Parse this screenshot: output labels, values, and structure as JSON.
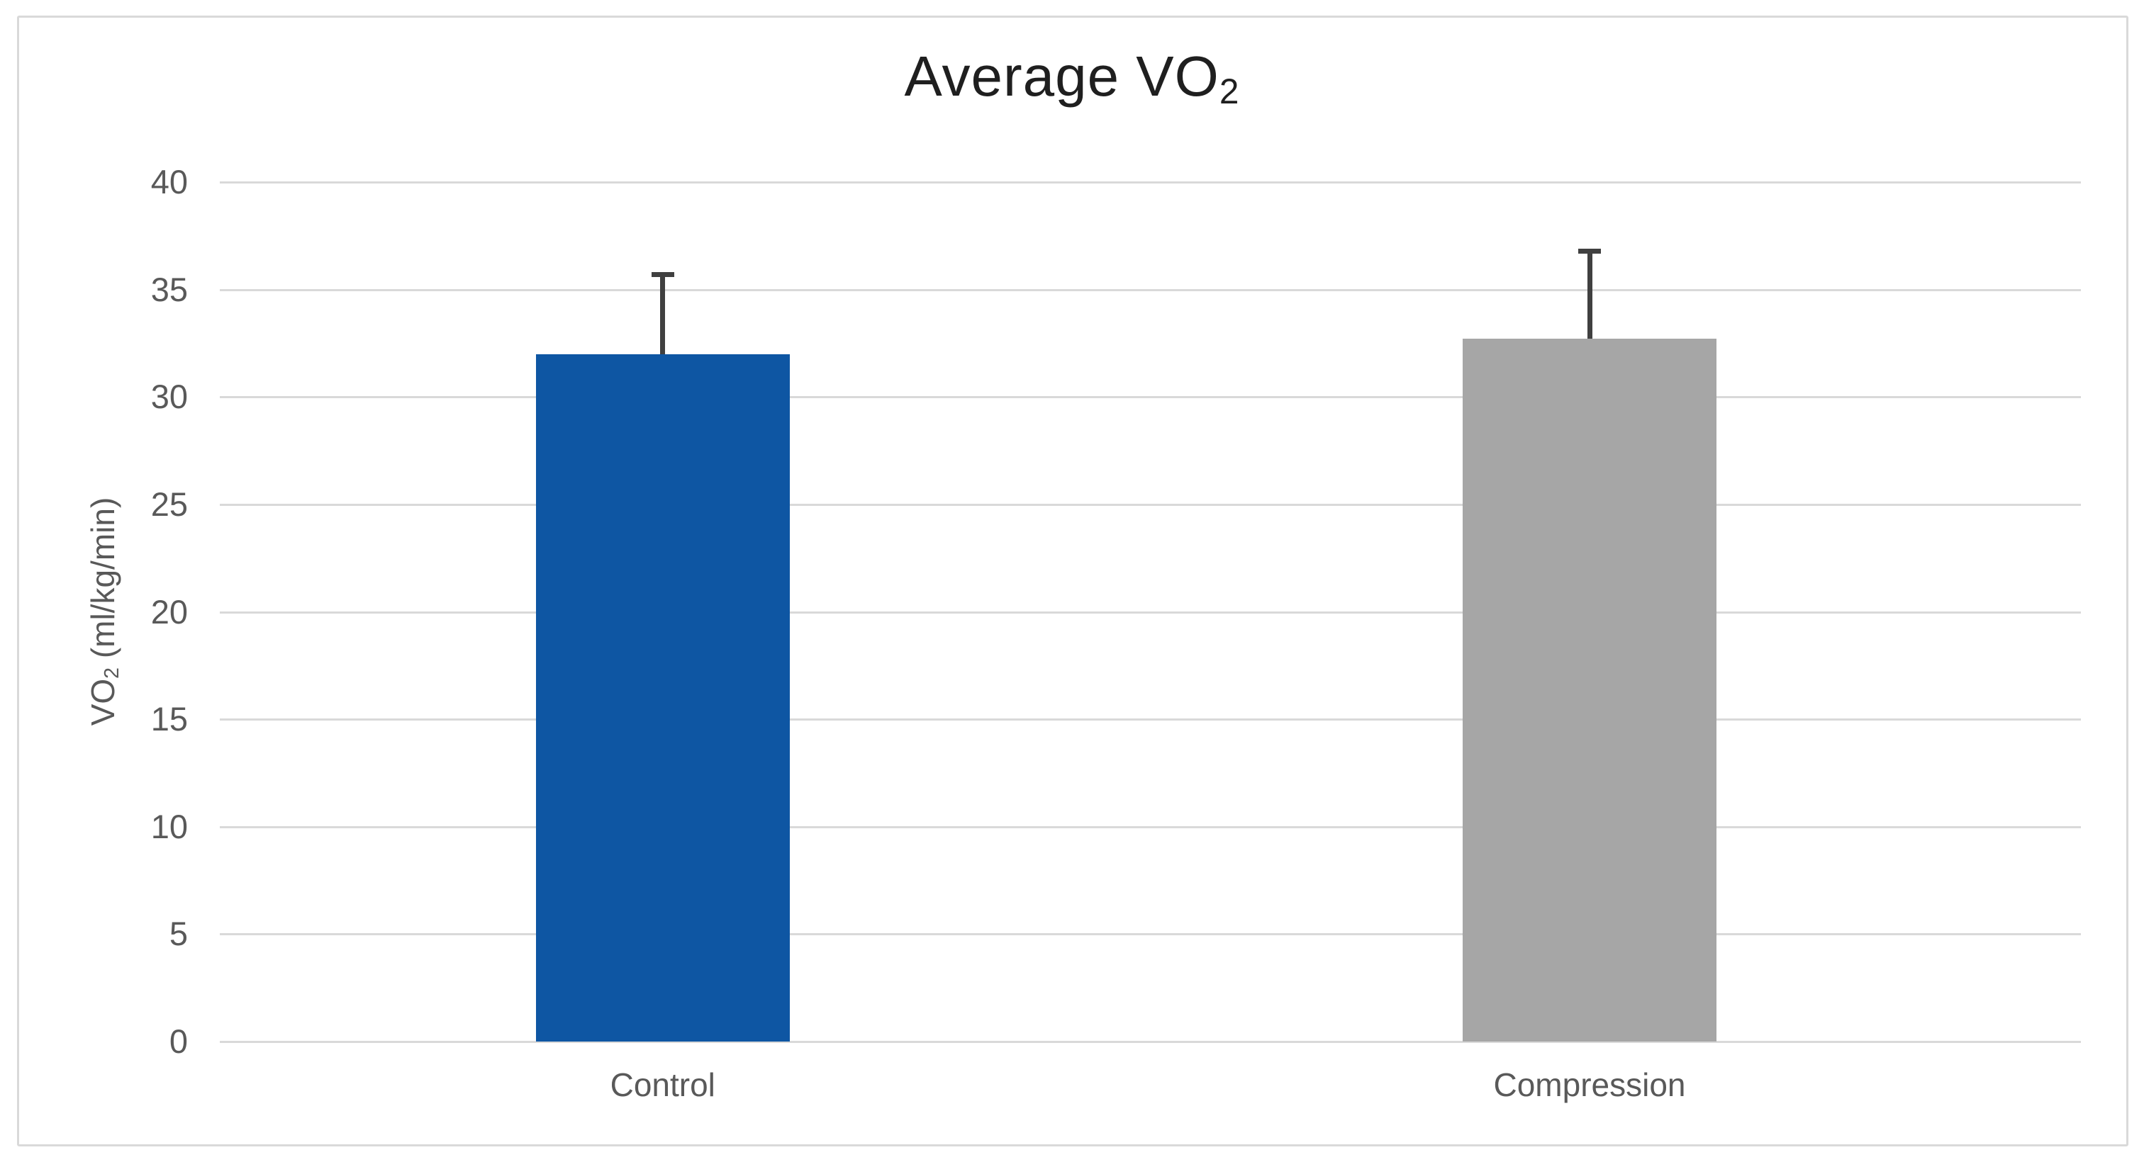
{
  "figure": {
    "background": "#ffffff",
    "frame_border_color": "#d9d9d9"
  },
  "chart_data": {
    "type": "bar",
    "title": {
      "text": "Average VO",
      "subscript": "2"
    },
    "ylabel": {
      "pre": "VO",
      "subscript": "2",
      "post": " (ml/kg/min)"
    },
    "xlabel": "",
    "categories": [
      "Control",
      "Compression"
    ],
    "values": [
      32.0,
      32.7
    ],
    "error_plus": [
      3.7,
      4.1
    ],
    "error_tops": [
      35.7,
      36.8
    ],
    "bar_colors": [
      "#0e56a3",
      "#a6a6a6"
    ],
    "error_bar_color": "#404040",
    "yticks": [
      0,
      5,
      10,
      15,
      20,
      25,
      30,
      35,
      40
    ],
    "ylim": [
      0,
      40
    ],
    "grid": true,
    "gridline_color": "#d9d9d9",
    "axis_line_color": "#d9d9d9",
    "tick_label_color": "#595959",
    "title_color": "#1f1f1f",
    "legend": "none"
  }
}
